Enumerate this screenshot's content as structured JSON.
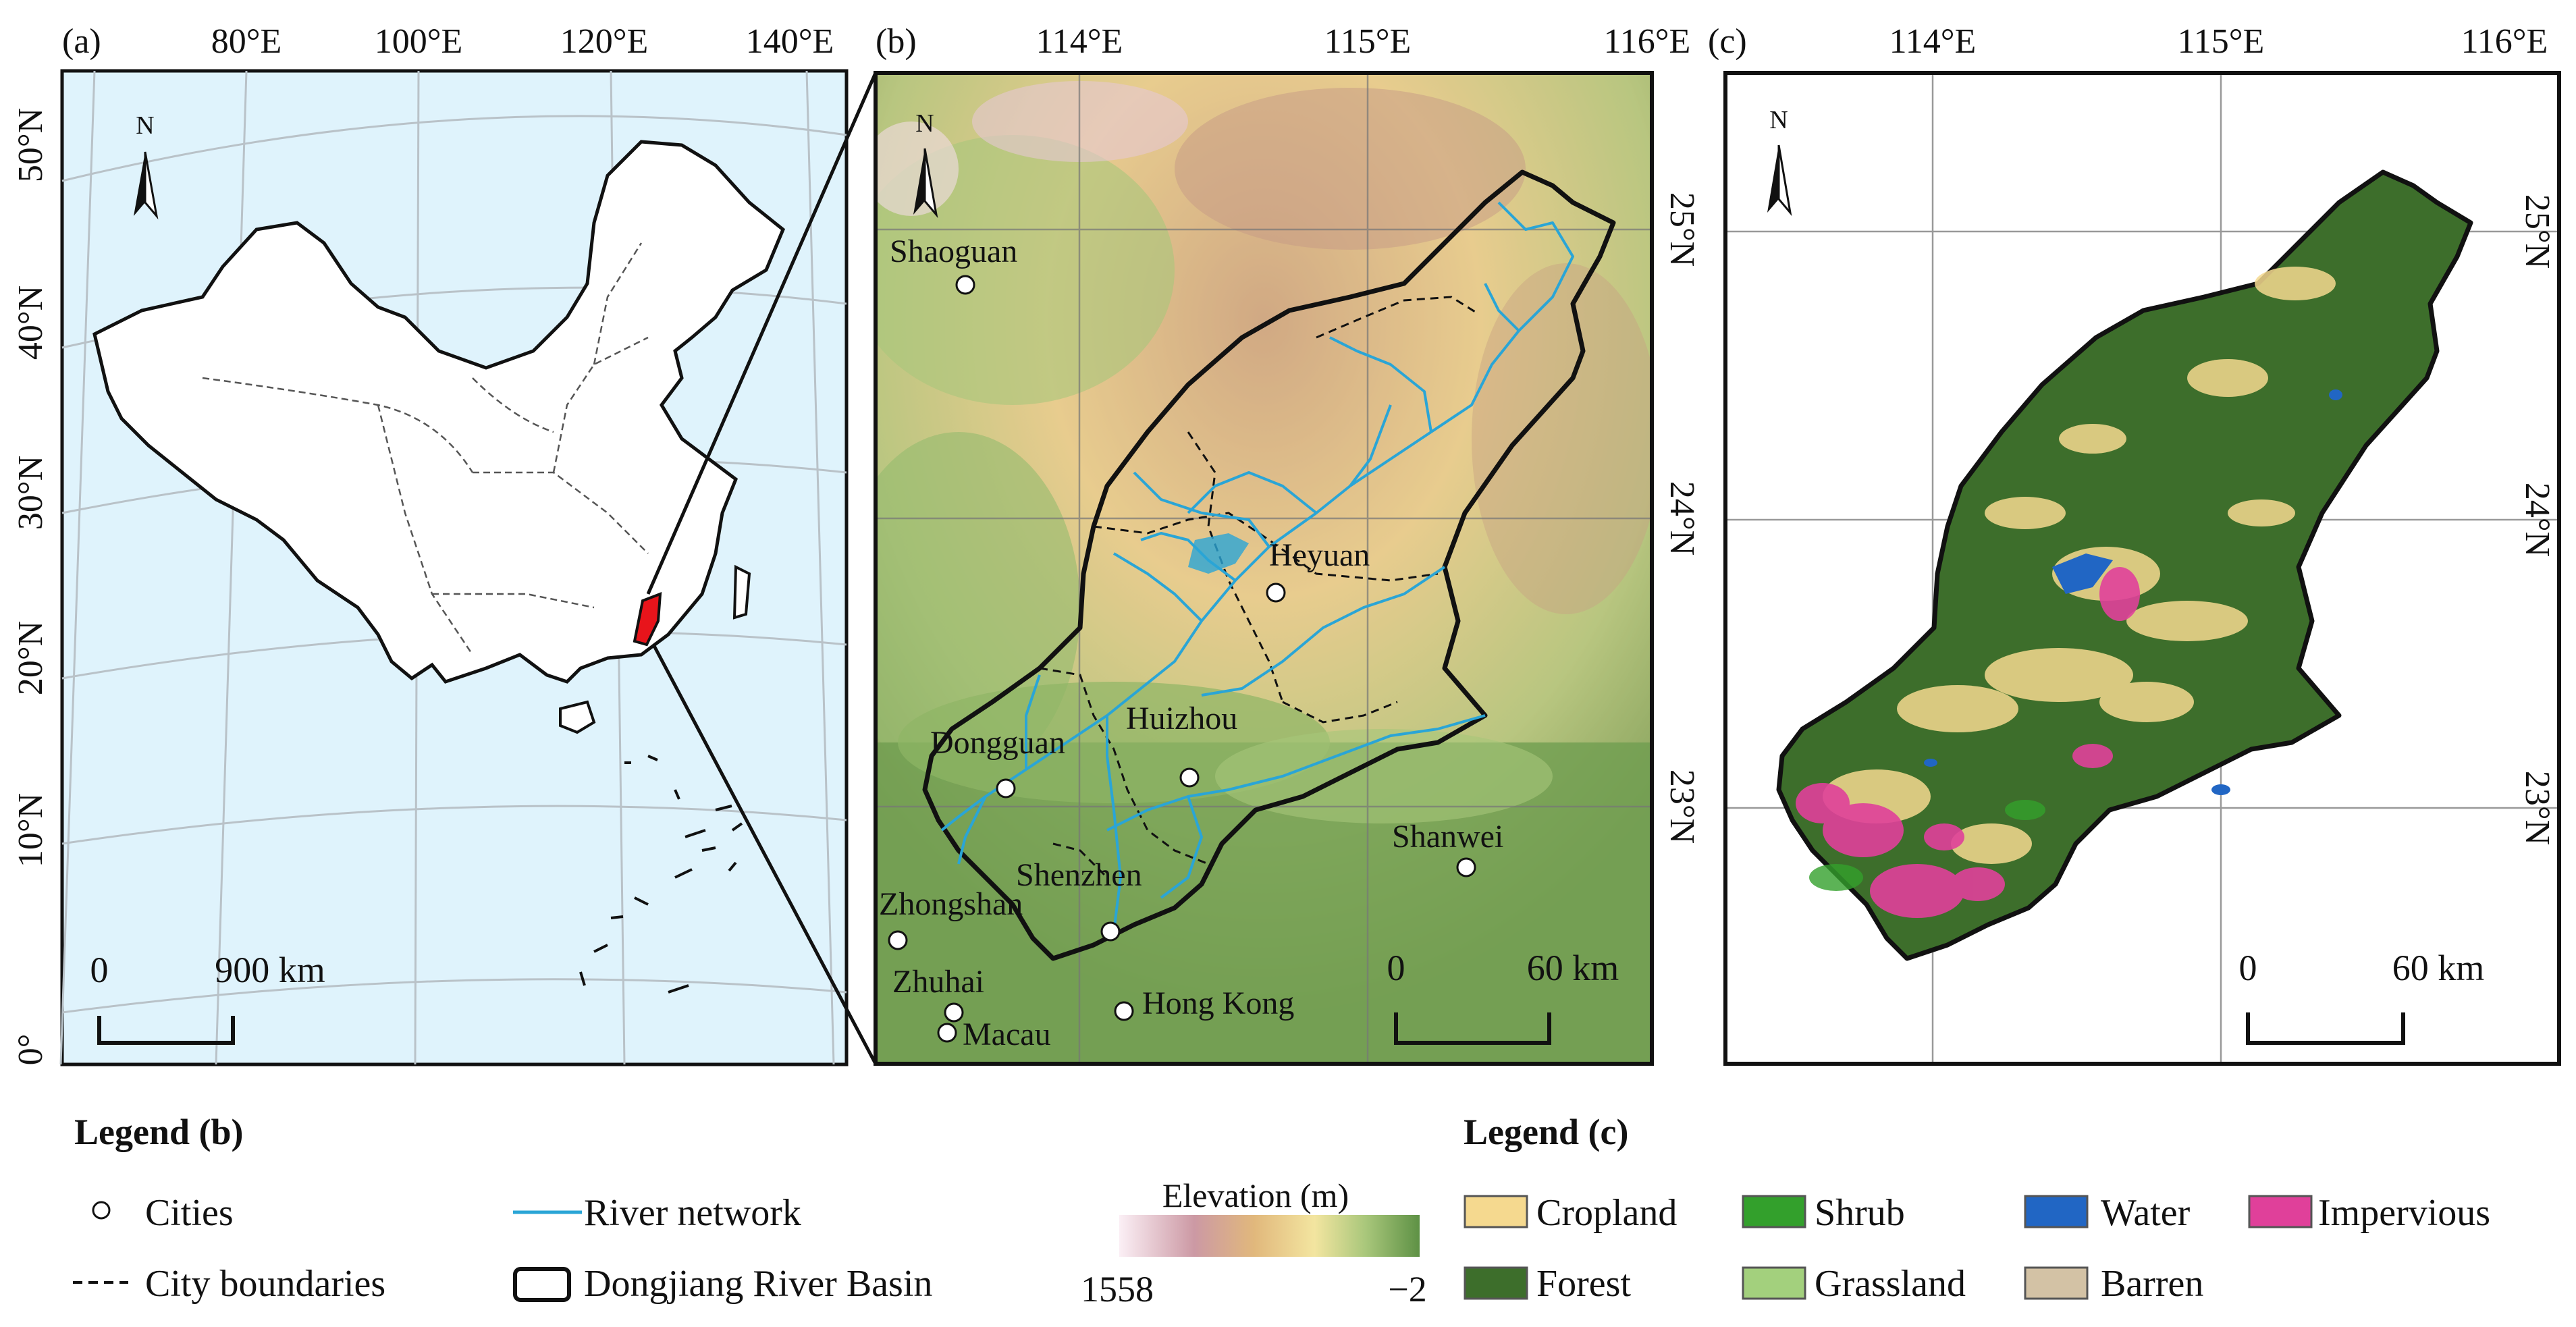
{
  "panel_a": {
    "label": "(a)",
    "lon_labels": [
      "80°E",
      "100°E",
      "120°E",
      "140°E"
    ],
    "lat_labels": [
      "50°N",
      "40°N",
      "30°N",
      "20°N",
      "10°N",
      "0°"
    ],
    "north": "N",
    "scale": {
      "zero": "0",
      "value": "900 km"
    }
  },
  "panel_b": {
    "label": "(b)",
    "lon_labels": [
      "114°E",
      "115°E",
      "116°E"
    ],
    "lat_labels": [
      "25°N",
      "24°N",
      "23°N"
    ],
    "north": "N",
    "cities": [
      "Shaoguan",
      "Heyuan",
      "Dongguan",
      "Huizhou",
      "Shanwei",
      "Shenzhen",
      "Zhongshan",
      "Zhuhai",
      "Hong Kong",
      "Macau"
    ],
    "scale": {
      "zero": "0",
      "value": "60 km"
    }
  },
  "panel_c": {
    "label": "(c)",
    "lon_labels": [
      "114°E",
      "115°E",
      "116°E"
    ],
    "lat_labels": [
      "25°N",
      "24°N",
      "23°N"
    ],
    "north": "N",
    "scale": {
      "zero": "0",
      "value": "60 km"
    }
  },
  "legend_b": {
    "title": "Legend (b)",
    "items": [
      "Cities",
      "River network",
      "City boundaries",
      "Dongjiang River Basin"
    ],
    "elevation_title": "Elevation (m)",
    "elevation_max": "1558",
    "elevation_min": "−2"
  },
  "legend_c": {
    "title": "Legend (c)",
    "items": [
      "Cropland",
      "Shrub",
      "Water",
      "Impervious",
      "Forest",
      "Grassland",
      "Barren"
    ]
  },
  "colors": {
    "ocean": "#dff3fc",
    "highlight": "#e8141b",
    "river": "#2aa5d6",
    "cropland": "#f5d98f",
    "shrub": "#33a02c",
    "water": "#2166c4",
    "impervious": "#e0409a",
    "forest": "#3d6e2b",
    "grassland": "#a3d07d",
    "barren": "#d3c2a5"
  }
}
